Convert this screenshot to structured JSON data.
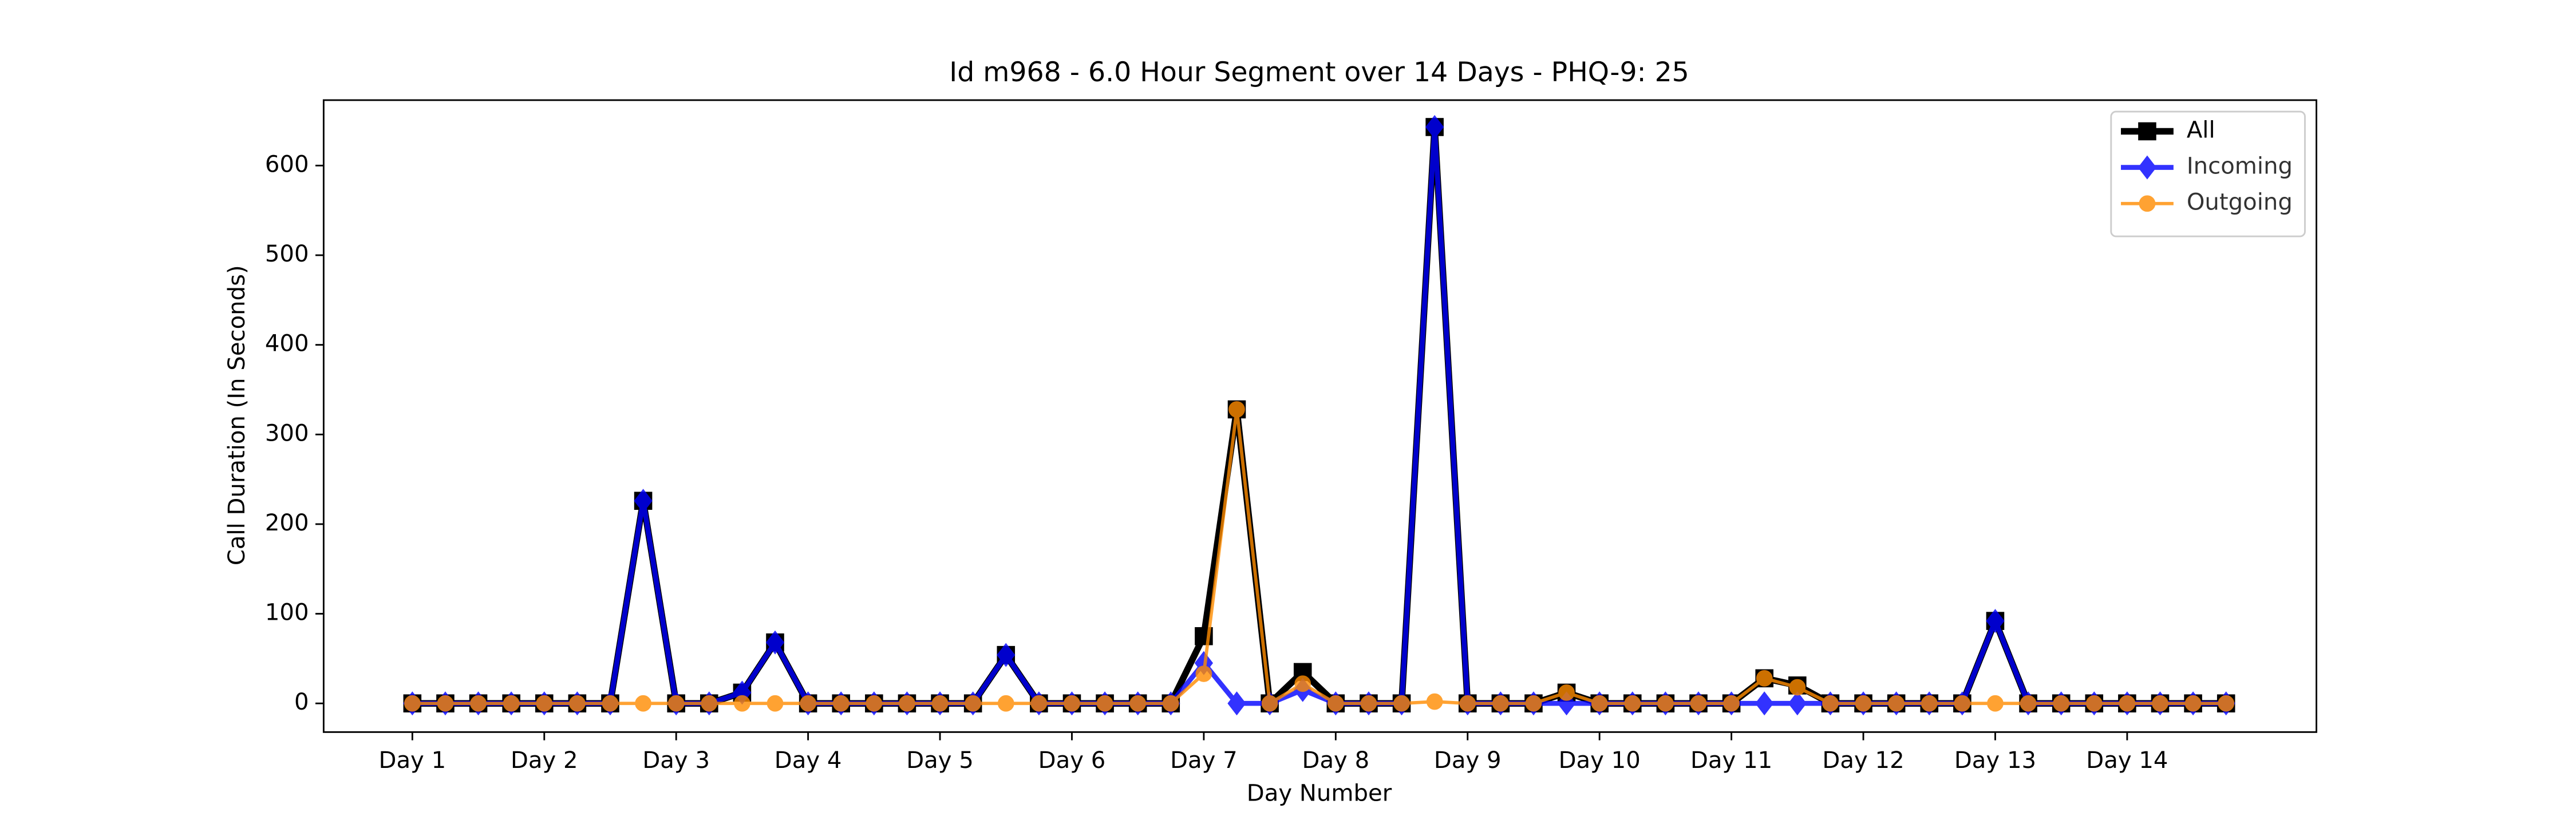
{
  "chart_data": {
    "type": "line",
    "title": "Id m968 - 6.0 Hour Segment over 14 Days - PHQ-9: 25",
    "xlabel": "Day Number",
    "ylabel": "Call Duration (In Seconds)",
    "categories": [
      "Day 1",
      null,
      null,
      null,
      "Day 2",
      null,
      null,
      null,
      "Day 3",
      null,
      null,
      null,
      "Day 4",
      null,
      null,
      null,
      "Day 5",
      null,
      null,
      null,
      "Day 6",
      null,
      null,
      null,
      "Day 7",
      null,
      null,
      null,
      "Day 8",
      null,
      null,
      null,
      "Day 9",
      null,
      null,
      null,
      "Day 10",
      null,
      null,
      null,
      "Day 11",
      null,
      null,
      null,
      "Day 12",
      null,
      null,
      null,
      "Day 13",
      null,
      null,
      null,
      "Day 14",
      null,
      null,
      null
    ],
    "series": [
      {
        "name": "All",
        "color": "#000000",
        "marker": "square",
        "values": [
          0,
          0,
          0,
          0,
          0,
          0,
          0,
          226,
          0,
          0,
          12,
          68,
          0,
          0,
          0,
          0,
          0,
          0,
          54,
          0,
          0,
          0,
          0,
          0,
          75,
          328,
          0,
          35,
          0,
          0,
          0,
          643,
          0,
          0,
          0,
          12,
          0,
          0,
          0,
          0,
          0,
          28,
          20,
          0,
          0,
          0,
          0,
          0,
          92,
          0,
          0,
          0,
          0,
          0,
          0,
          0
        ]
      },
      {
        "name": "Incoming",
        "color": "#0000ff",
        "marker": "diamond",
        "values": [
          0,
          0,
          0,
          0,
          0,
          0,
          0,
          226,
          0,
          0,
          12,
          68,
          0,
          0,
          0,
          0,
          0,
          0,
          54,
          0,
          0,
          0,
          0,
          0,
          45,
          0,
          0,
          15,
          0,
          0,
          0,
          643,
          0,
          0,
          0,
          0,
          0,
          0,
          0,
          0,
          0,
          0,
          0,
          0,
          0,
          0,
          0,
          0,
          92,
          0,
          0,
          0,
          0,
          0,
          0,
          0
        ]
      },
      {
        "name": "Outgoing",
        "color": "#ff8c00",
        "marker": "circle",
        "values": [
          0,
          0,
          0,
          0,
          0,
          0,
          0,
          0,
          0,
          0,
          0,
          0,
          0,
          0,
          0,
          0,
          0,
          0,
          0,
          0,
          0,
          0,
          0,
          0,
          33,
          328,
          0,
          22,
          0,
          0,
          0,
          2,
          0,
          0,
          0,
          12,
          0,
          0,
          0,
          0,
          0,
          28,
          18,
          0,
          0,
          0,
          0,
          0,
          0,
          0,
          0,
          0,
          0,
          0,
          0,
          0
        ]
      }
    ],
    "ylim": [
      -32,
      673
    ],
    "yticks": [
      0,
      100,
      200,
      300,
      400,
      500,
      600
    ],
    "legend": "upper right"
  }
}
